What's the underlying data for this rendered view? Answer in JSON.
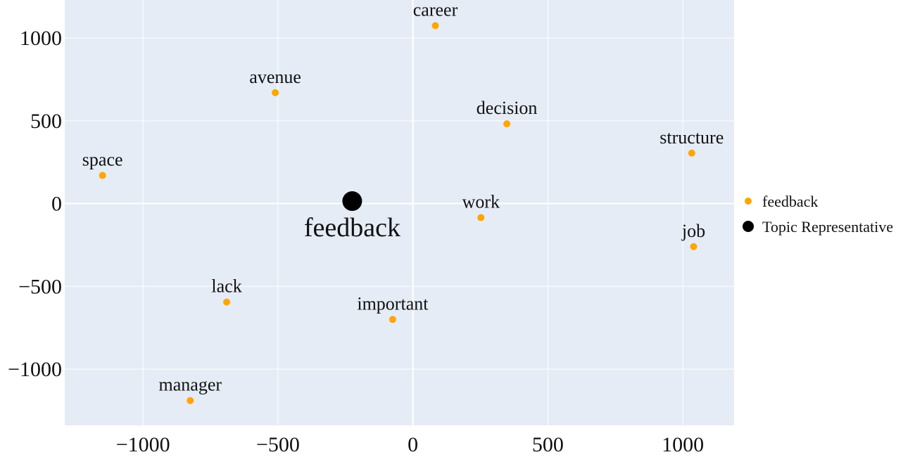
{
  "chart_data": {
    "type": "scatter",
    "title": "",
    "xlabel": "",
    "ylabel": "",
    "xlim": [
      -1290,
      1190
    ],
    "ylim": [
      -1340,
      1230
    ],
    "x_ticks": [
      -1000,
      -500,
      0,
      500,
      1000
    ],
    "y_ticks": [
      -1000,
      -500,
      0,
      500,
      1000
    ],
    "grid": true,
    "legend_position": "right",
    "plot_background": "#e5ecf6",
    "series": [
      {
        "name": "feedback",
        "color": "#ffa500",
        "points": [
          {
            "label": "career",
            "x": 83,
            "y": 1075
          },
          {
            "label": "avenue",
            "x": -510,
            "y": 670
          },
          {
            "label": "decision",
            "x": 348,
            "y": 482
          },
          {
            "label": "structure",
            "x": 1033,
            "y": 305
          },
          {
            "label": "space",
            "x": 1033,
            "y": 305,
            "skip": true
          },
          {
            "label": "work",
            "x": 252,
            "y": -85
          },
          {
            "label": "job",
            "x": 1040,
            "y": -260
          },
          {
            "label": "lack",
            "x": -690,
            "y": -595
          },
          {
            "label": "important",
            "x": -75,
            "y": -700
          },
          {
            "label": "manager",
            "x": -825,
            "y": -1190
          }
        ]
      },
      {
        "name": "Topic Representative",
        "color": "#000000",
        "points": [
          {
            "label": "feedback",
            "x": -225,
            "y": 15
          }
        ]
      }
    ]
  }
}
